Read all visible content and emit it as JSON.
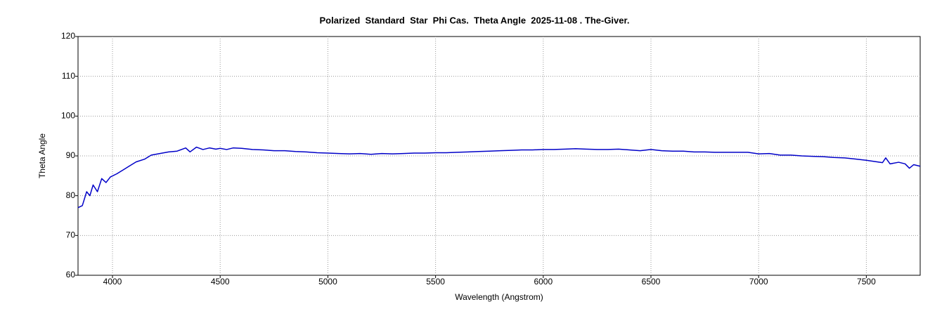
{
  "chart_data": {
    "type": "line",
    "title": "Polarized  Standard  Star  Phi Cas.  Theta Angle  2025-11-08 . The-Giver.",
    "x_label": "Wavelength (Angstrom)",
    "y_label": "Theta Angle",
    "xlim": [
      3840,
      7750
    ],
    "ylim": [
      60,
      120
    ],
    "xticks": [
      4000,
      4500,
      5000,
      5500,
      6000,
      6500,
      7000,
      7500
    ],
    "yticks": [
      60,
      70,
      80,
      90,
      100,
      110,
      120
    ],
    "grid": true,
    "series": [
      {
        "name": "Theta Angle",
        "color": "#0000c8",
        "x": [
          3840,
          3860,
          3880,
          3895,
          3910,
          3930,
          3950,
          3970,
          3990,
          4020,
          4050,
          4080,
          4110,
          4150,
          4180,
          4220,
          4260,
          4300,
          4340,
          4360,
          4390,
          4420,
          4450,
          4480,
          4500,
          4530,
          4560,
          4600,
          4650,
          4700,
          4750,
          4800,
          4850,
          4900,
          4950,
          5000,
          5050,
          5100,
          5150,
          5200,
          5250,
          5300,
          5350,
          5400,
          5450,
          5500,
          5550,
          5600,
          5650,
          5700,
          5750,
          5800,
          5850,
          5900,
          5950,
          6000,
          6050,
          6100,
          6150,
          6200,
          6250,
          6300,
          6350,
          6400,
          6450,
          6500,
          6550,
          6600,
          6650,
          6700,
          6750,
          6800,
          6850,
          6900,
          6950,
          7000,
          7050,
          7100,
          7150,
          7200,
          7250,
          7300,
          7350,
          7400,
          7450,
          7500,
          7550,
          7575,
          7590,
          7610,
          7650,
          7680,
          7700,
          7720,
          7750
        ],
        "values": [
          77,
          77.5,
          81,
          80,
          82.7,
          81,
          84.3,
          83.3,
          84.7,
          85.5,
          86.5,
          87.5,
          88.5,
          89.2,
          90.2,
          90.6,
          91,
          91.2,
          92,
          91,
          92.2,
          91.6,
          92,
          91.7,
          91.9,
          91.6,
          92,
          91.9,
          91.6,
          91.5,
          91.3,
          91.3,
          91.1,
          91,
          90.8,
          90.7,
          90.6,
          90.5,
          90.6,
          90.4,
          90.6,
          90.5,
          90.6,
          90.7,
          90.7,
          90.8,
          90.8,
          90.9,
          91,
          91.1,
          91.2,
          91.3,
          91.4,
          91.5,
          91.5,
          91.6,
          91.6,
          91.7,
          91.8,
          91.7,
          91.6,
          91.6,
          91.7,
          91.5,
          91.3,
          91.6,
          91.3,
          91.2,
          91.2,
          91,
          91,
          90.9,
          90.9,
          90.9,
          90.9,
          90.5,
          90.6,
          90.2,
          90.2,
          90,
          89.9,
          89.8,
          89.6,
          89.5,
          89.2,
          88.9,
          88.5,
          88.3,
          89.5,
          88,
          88.4,
          88,
          86.9,
          87.8,
          87.4
        ]
      }
    ]
  }
}
